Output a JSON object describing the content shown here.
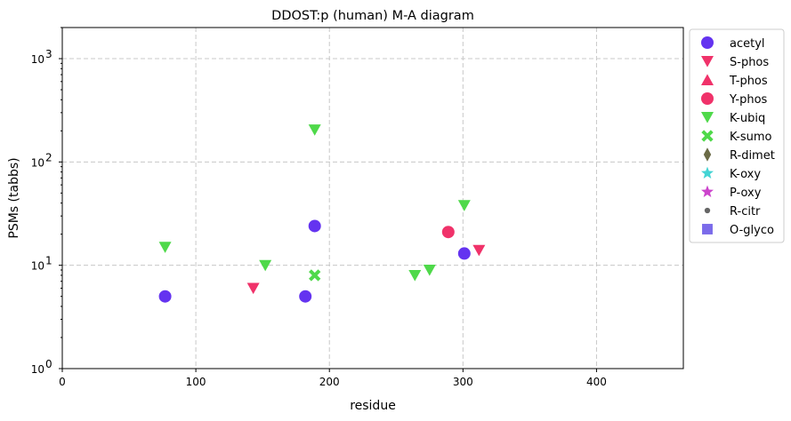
{
  "chart_data": {
    "type": "scatter",
    "title": "DDOST:p (human) M-A diagram",
    "xlabel": "residue",
    "ylabel": "PSMs (tabbs)",
    "xlim": [
      0,
      465
    ],
    "ylim": [
      1,
      2000
    ],
    "yscale": "log",
    "grid": true,
    "legend_position": "outside-right",
    "x_ticks": [
      0,
      100,
      200,
      300,
      400
    ],
    "y_ticks": [
      {
        "value": 1,
        "base": "10",
        "exp": "0"
      },
      {
        "value": 10,
        "base": "10",
        "exp": "1"
      },
      {
        "value": 100,
        "base": "10",
        "exp": "2"
      },
      {
        "value": 1000,
        "base": "10",
        "exp": "3"
      }
    ],
    "series": [
      {
        "name": "acetyl",
        "marker": "circle",
        "color": "#6433f0",
        "points": [
          {
            "x": 77,
            "y": 5
          },
          {
            "x": 182,
            "y": 5
          },
          {
            "x": 189,
            "y": 24
          },
          {
            "x": 301,
            "y": 13
          }
        ]
      },
      {
        "name": "S-phos",
        "marker": "triangle-down",
        "color": "#f0326a",
        "points": [
          {
            "x": 143,
            "y": 6
          },
          {
            "x": 312,
            "y": 14
          }
        ]
      },
      {
        "name": "T-phos",
        "marker": "triangle-up",
        "color": "#f0326a",
        "points": []
      },
      {
        "name": "Y-phos",
        "marker": "circle",
        "color": "#f0326a",
        "points": [
          {
            "x": 289,
            "y": 21
          }
        ]
      },
      {
        "name": "K-ubiq",
        "marker": "triangle-down",
        "color": "#4fd94a",
        "points": [
          {
            "x": 77,
            "y": 15
          },
          {
            "x": 152,
            "y": 10
          },
          {
            "x": 189,
            "y": 205
          },
          {
            "x": 264,
            "y": 8
          },
          {
            "x": 275,
            "y": 9
          },
          {
            "x": 301,
            "y": 38
          }
        ]
      },
      {
        "name": "K-sumo",
        "marker": "x",
        "color": "#4fd94a",
        "points": [
          {
            "x": 189,
            "y": 8
          }
        ]
      },
      {
        "name": "R-dimet",
        "marker": "diamond",
        "color": "#6b6b47",
        "points": []
      },
      {
        "name": "K-oxy",
        "marker": "star",
        "color": "#44d4d4",
        "points": []
      },
      {
        "name": "P-oxy",
        "marker": "star",
        "color": "#cc44cc",
        "points": []
      },
      {
        "name": "R-citr",
        "marker": "dot",
        "color": "#666666",
        "points": []
      },
      {
        "name": "O-glyco",
        "marker": "square",
        "color": "#7b6bea",
        "points": []
      }
    ]
  }
}
